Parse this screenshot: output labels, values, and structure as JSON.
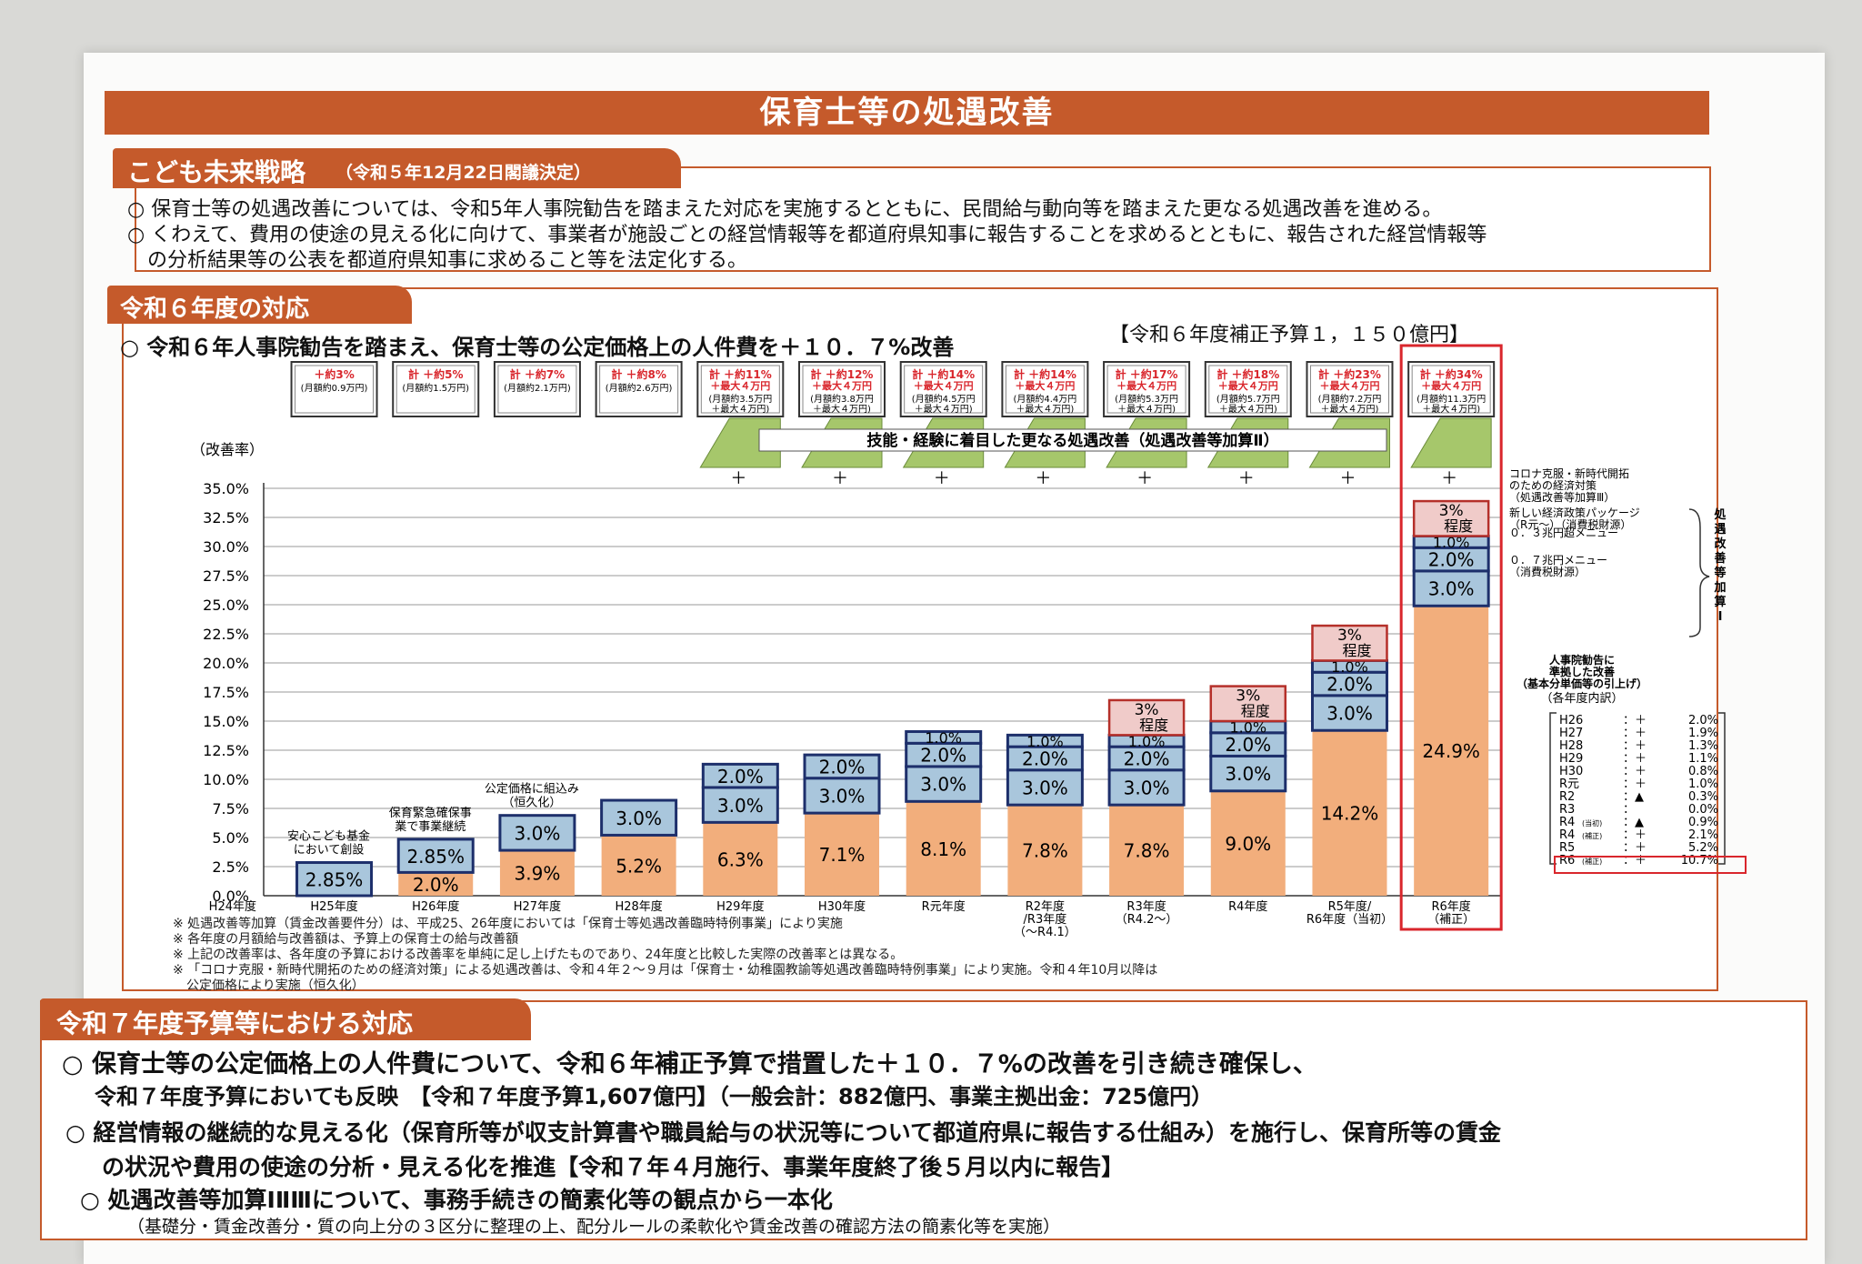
{
  "title": "保育士等の処遇改善",
  "section1": {
    "tab": "こども未来戦略",
    "tab_note": "（令和５年12月22日閣議決定）",
    "bullets": [
      "○ 保育士等の処遇改善については、令和5年人事院勧告を踏まえた対応を実施するとともに、民間給与動向等を踏まえた更なる処遇改善を進める。",
      "○ くわえて、費用の使途の見える化に向けて、事業者が施設ごとの経営情報等を都道府県知事に報告することを求めるとともに、報告された経営情報等",
      "の分析結果等の公表を都道府県知事に求めること等を法定化する。"
    ]
  },
  "section2": {
    "tab": "令和６年度の対応",
    "headline": "○ 令和６年人事院勧告を踏まえ、保育士等の公定価格上の人件費を＋１０．７%改善",
    "headline_note": "【令和６年度補正予算１，１５０億円】",
    "ylabel": "（改善率）",
    "skill_banner": "技能・経験に着目した更なる処遇改善（処遇改善等加算Ⅱ）",
    "plus": "＋",
    "top_boxes": [
      {
        "main": "＋約3%",
        "sub": "(月額約0.9万円)"
      },
      {
        "main": "計 ＋約5%",
        "sub": "(月額約1.5万円)"
      },
      {
        "main": "計 ＋約7%",
        "sub": "(月額約2.1万円)"
      },
      {
        "main": "計 ＋約8%",
        "sub": "(月額約2.6万円)"
      },
      {
        "main": "計 ＋約11%",
        "main2": "＋最大４万円",
        "sub": "(月額約3.5万円",
        "sub2": "＋最大４万円)"
      },
      {
        "main": "計 ＋約12%",
        "main2": "＋最大４万円",
        "sub": "(月額約3.8万円",
        "sub2": "＋最大４万円)"
      },
      {
        "main": "計 ＋約14%",
        "main2": "＋最大４万円",
        "sub": "(月額約4.5万円",
        "sub2": "＋最大４万円)"
      },
      {
        "main": "計 ＋約14%",
        "main2": "＋最大４万円",
        "sub": "(月額約4.4万円",
        "sub2": "＋最大４万円)"
      },
      {
        "main": "計 ＋約17%",
        "main2": "＋最大４万円",
        "sub": "(月額約5.3万円",
        "sub2": "＋最大４万円)"
      },
      {
        "main": "計 ＋約18%",
        "main2": "＋最大４万円",
        "sub": "(月額約5.7万円",
        "sub2": "＋最大４万円)"
      },
      {
        "main": "計 ＋約23%",
        "main2": "＋最大４万円",
        "sub": "(月額約7.2万円",
        "sub2": "＋最大４万円)"
      },
      {
        "main": "計 ＋約34%",
        "main2": "＋最大４万円",
        "sub": "(月額約11.3万円",
        "sub2": "＋最大４万円)"
      }
    ],
    "bar_annotations": [
      {
        "category_index": 1,
        "lines": [
          "安心こども基金",
          "において創設"
        ]
      },
      {
        "category_index": 2,
        "lines": [
          "保育緊急確保事",
          "業で事業継続"
        ]
      },
      {
        "category_index": 3,
        "lines": [
          "公定価格に組込み",
          "（恒久化）"
        ]
      }
    ],
    "right_labels": [
      {
        "lines": [
          "コロナ克服・新時代開拓",
          "のための経済対策",
          "（処遇改善等加算Ⅲ）"
        ]
      },
      {
        "lines": [
          "新しい経済政策パッケージ",
          "（R元～）（消費税財源）"
        ]
      },
      {
        "lines": [
          "０．３兆円超メニュー"
        ]
      },
      {
        "lines": [
          "０．７兆円メニュー",
          "（消費税財源）"
        ]
      }
    ],
    "right_bracket": "処遇改善等加算Ⅰ",
    "jinji_label": [
      "人事院勧告に",
      "準拠した改善",
      "（基本分単価等の引上げ）"
    ],
    "breakdown_title": "（各年度内訳）",
    "breakdown": [
      {
        "year": "H26",
        "sign": "：＋",
        "value": "2.0%"
      },
      {
        "year": "H27",
        "sign": "：＋",
        "value": "1.9%"
      },
      {
        "year": "H28",
        "sign": "：＋",
        "value": "1.3%"
      },
      {
        "year": "H29",
        "sign": "：＋",
        "value": "1.1%"
      },
      {
        "year": "H30",
        "sign": "：＋",
        "value": "0.8%"
      },
      {
        "year": "R元",
        "sign": "：＋",
        "value": "1.0%"
      },
      {
        "year": "R2",
        "sign": "：▲",
        "value": "0.3%"
      },
      {
        "year": "R3",
        "sign": "：",
        "value": "0.0%"
      },
      {
        "year": "R4",
        "sub": "(当初)",
        "sign": "：▲",
        "value": "0.9%"
      },
      {
        "year": "R4",
        "sub": "(補正)",
        "sign": "：＋",
        "value": "2.1%"
      },
      {
        "year": "R5",
        "sign": "：＋",
        "value": "5.2%"
      },
      {
        "year": "R6",
        "sub": "(補正)",
        "sign": "：＋",
        "value": "10.7%"
      }
    ],
    "footnotes": [
      "※ 処遇改善等加算（賃金改善要件分）は、平成25、26年度においては「保育士等処遇改善臨時特例事業」により実施",
      "※ 各年度の月額給与改善額は、予算上の保育士の給与改善額",
      "※ 上記の改善率は、各年度の予算における改善率を単純に足し上げたものであり、24年度と比較した実際の改善率とは異なる。",
      "※ 「コロナ克服・新時代開拓のための経済対策」による処遇改善は、令和４年２～９月は「保育士・幼稚園教諭等処遇改善臨時特例事業」により実施。令和４年10月以降は",
      "公定価格により実施（恒久化）"
    ]
  },
  "section3": {
    "tab": "令和７年度予算等における対応",
    "lines": [
      {
        "text": "○ 保育士等の公定価格上の人件費について、令和６年補正予算で措置した＋１０．７%の改善を引き続き確保し、",
        "big": true
      },
      {
        "text": "令和７年度予算においても反映　【令和７年度予算1,607億円】（一般会計：882億円、事業主拠出金：725億円）",
        "big": true
      },
      {
        "text": "○ 経営情報の継続的な見える化（保育所等が収支計算書や職員給与の状況等について都道府県に報告する仕組み）を施行し、保育所等の賃金",
        "big": true
      },
      {
        "text": "の状況や費用の使途の分析・見える化を推進【令和７年４月施行、事業年度終了後５月以内に報告】",
        "big": true
      },
      {
        "text": "○ 処遇改善等加算ⅠⅡⅢについて、事務手続きの簡素化等の観点から一本化",
        "big": true
      },
      {
        "text": "（基礎分・賃金改善分・質の向上分の３区分に整理の上、配分ルールの柔軟化や賃金改善の確認方法の簡素化等を実施）",
        "big": false
      }
    ]
  },
  "colors": {
    "accent": "#c55a2b",
    "base_bar": "#f2ae7c",
    "blue_bar": "#a9c6dc",
    "pink_bar": "#f0cbc9",
    "green_tab": "#a6c76b",
    "highlight": "#d9262c"
  },
  "chart_data": {
    "type": "bar",
    "stacked": true,
    "categories": [
      "H24年度",
      "H25年度",
      "H26年度",
      "H27年度",
      "H28年度",
      "H29年度",
      "H30年度",
      "R元年度",
      "R2年度/R3年度（～R4.1）",
      "R3年度（R4.2～）",
      "R4年度",
      "R5年度/R6年度（当初）",
      "R6年度（補正）"
    ],
    "category_lines": [
      [
        "H24年度"
      ],
      [
        "H25年度"
      ],
      [
        "H26年度"
      ],
      [
        "H27年度"
      ],
      [
        "H28年度"
      ],
      [
        "H29年度"
      ],
      [
        "H30年度"
      ],
      [
        "R元年度"
      ],
      [
        "R2年度",
        "/R3年度",
        "（～R4.1）"
      ],
      [
        "R3年度",
        "（R4.2～）"
      ],
      [
        "R4年度"
      ],
      [
        "R5年度/",
        "R6年度（当初）"
      ],
      [
        "R6年度",
        "（補正）"
      ]
    ],
    "series": [
      {
        "values": [
          0,
          0,
          2.0,
          3.9,
          5.2,
          6.3,
          7.1,
          8.1,
          7.8,
          7.8,
          9.0,
          14.2,
          24.9
        ],
        "labels": [
          "",
          "",
          "2.0%",
          "3.9%",
          "5.2%",
          "6.3%",
          "7.1%",
          "8.1%",
          "7.8%",
          "7.8%",
          "9.0%",
          "14.2%",
          "24.9%"
        ]
      },
      {
        "values": [
          0,
          2.85,
          2.85,
          3.0,
          3.0,
          3.0,
          3.0,
          3.0,
          3.0,
          3.0,
          3.0,
          3.0,
          3.0
        ],
        "labels": [
          "",
          "2.85%",
          "2.85%",
          "3.0%",
          "3.0%",
          "3.0%",
          "3.0%",
          "3.0%",
          "3.0%",
          "3.0%",
          "3.0%",
          "3.0%",
          "3.0%"
        ]
      },
      {
        "values": [
          0,
          0,
          0,
          0,
          0,
          2.0,
          2.0,
          2.0,
          2.0,
          2.0,
          2.0,
          2.0,
          2.0
        ],
        "labels": [
          "",
          "",
          "",
          "",
          "",
          "2.0%",
          "2.0%",
          "2.0%",
          "2.0%",
          "2.0%",
          "2.0%",
          "2.0%",
          "2.0%"
        ]
      },
      {
        "values": [
          0,
          0,
          0,
          0,
          0,
          0,
          0,
          1.0,
          1.0,
          1.0,
          1.0,
          1.0,
          1.0
        ],
        "labels": [
          "",
          "",
          "",
          "",
          "",
          "",
          "",
          "1.0%",
          "1.0%",
          "1.0%",
          "1.0%",
          "1.0%",
          "1.0%"
        ]
      },
      {
        "values": [
          0,
          0,
          0,
          0,
          0,
          0,
          0,
          0,
          0,
          3.0,
          3.0,
          3.0,
          3.0
        ],
        "labels": [
          "",
          "",
          "",
          "",
          "",
          "",
          "",
          "",
          "",
          "3%程度",
          "3%程度",
          "3%程度",
          "3%程度"
        ]
      }
    ],
    "yticks": [
      "0.0%",
      "2.5%",
      "5.0%",
      "7.5%",
      "10.0%",
      "12.5%",
      "15.0%",
      "17.5%",
      "20.0%",
      "22.5%",
      "25.0%",
      "27.5%",
      "30.0%",
      "32.5%",
      "35.0%"
    ],
    "ylim": [
      0,
      35
    ],
    "grid": true,
    "legend": "none"
  }
}
